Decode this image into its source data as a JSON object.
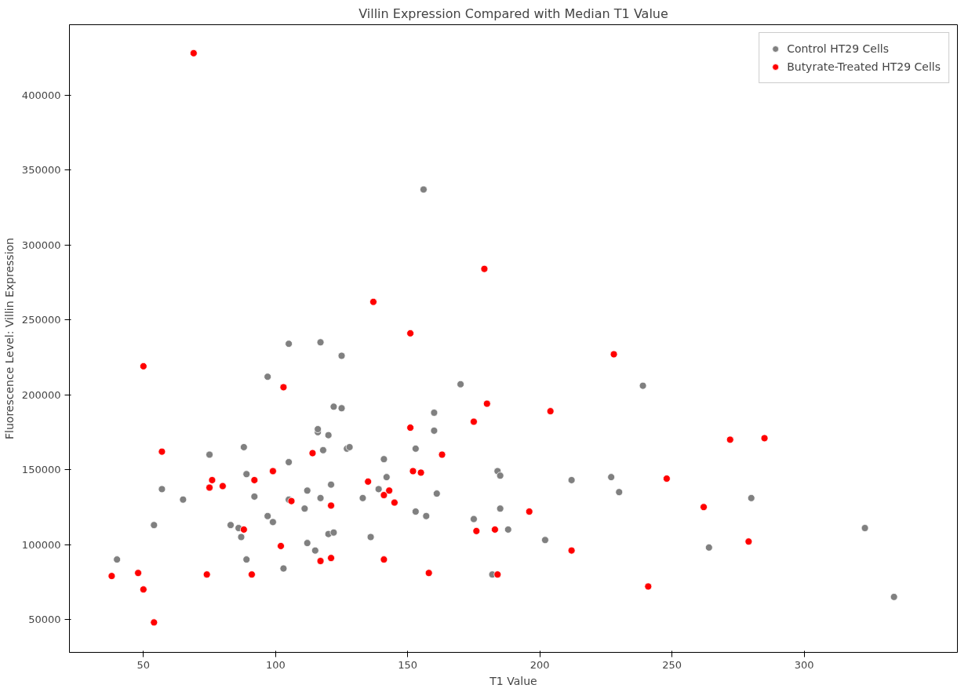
{
  "chart_data": {
    "type": "scatter",
    "title": "Villin Expression Compared with Median T1 Value",
    "xlabel": "T1 Value",
    "ylabel": "Fluorescence Level: Villin Expression",
    "xlim": [
      22,
      358
    ],
    "ylim": [
      28000,
      447000
    ],
    "xticks": [
      50,
      100,
      150,
      200,
      250,
      300
    ],
    "yticks": [
      50000,
      100000,
      150000,
      200000,
      250000,
      300000,
      350000,
      400000
    ],
    "grid": false,
    "legend": "top right",
    "marker": "circle",
    "series": [
      {
        "name": "Control HT29 Cells",
        "color": "#808080",
        "x": [
          40,
          54,
          57,
          65,
          75,
          83,
          86,
          87,
          88,
          89,
          89,
          92,
          97,
          97,
          99,
          103,
          105,
          105,
          105,
          111,
          112,
          112,
          115,
          116,
          116,
          117,
          117,
          118,
          120,
          120,
          121,
          122,
          122,
          125,
          125,
          127,
          128,
          133,
          136,
          139,
          141,
          142,
          153,
          153,
          156,
          157,
          160,
          160,
          161,
          170,
          175,
          182,
          184,
          185,
          185,
          188,
          202,
          212,
          227,
          230,
          239,
          264,
          280,
          323,
          334
        ],
        "values": [
          90000,
          113000,
          137000,
          130000,
          160000,
          113000,
          111000,
          105000,
          165000,
          90000,
          147000,
          132000,
          212000,
          119000,
          115000,
          84000,
          130000,
          155000,
          234000,
          124000,
          136000,
          101000,
          96000,
          175000,
          177000,
          131000,
          235000,
          163000,
          107000,
          173000,
          140000,
          108000,
          192000,
          191000,
          226000,
          164000,
          165000,
          131000,
          105000,
          137000,
          157000,
          145000,
          164000,
          122000,
          337000,
          119000,
          176000,
          188000,
          134000,
          207000,
          117000,
          80000,
          149000,
          146000,
          124000,
          110000,
          103000,
          143000,
          145000,
          135000,
          206000,
          98000,
          131000,
          111000,
          65000
        ]
      },
      {
        "name": "Butyrate-Treated HT29 Cells",
        "color": "#ff0000",
        "x": [
          38,
          48,
          50,
          50,
          54,
          57,
          69,
          74,
          75,
          76,
          80,
          88,
          91,
          92,
          99,
          102,
          103,
          106,
          114,
          117,
          121,
          121,
          135,
          137,
          141,
          141,
          143,
          145,
          151,
          151,
          152,
          155,
          158,
          163,
          175,
          176,
          179,
          180,
          183,
          184,
          196,
          204,
          212,
          228,
          241,
          248,
          262,
          272,
          279,
          285
        ],
        "values": [
          79000,
          81000,
          70000,
          219000,
          48000,
          162000,
          428000,
          80000,
          138000,
          143000,
          139000,
          110000,
          80000,
          143000,
          149000,
          99000,
          205000,
          129000,
          161000,
          89000,
          91000,
          126000,
          142000,
          262000,
          133000,
          90000,
          136000,
          128000,
          241000,
          178000,
          149000,
          148000,
          81000,
          160000,
          182000,
          109000,
          284000,
          194000,
          110000,
          80000,
          122000,
          189000,
          96000,
          227000,
          72000,
          144000,
          125000,
          170000,
          102000,
          171000
        ]
      }
    ]
  }
}
